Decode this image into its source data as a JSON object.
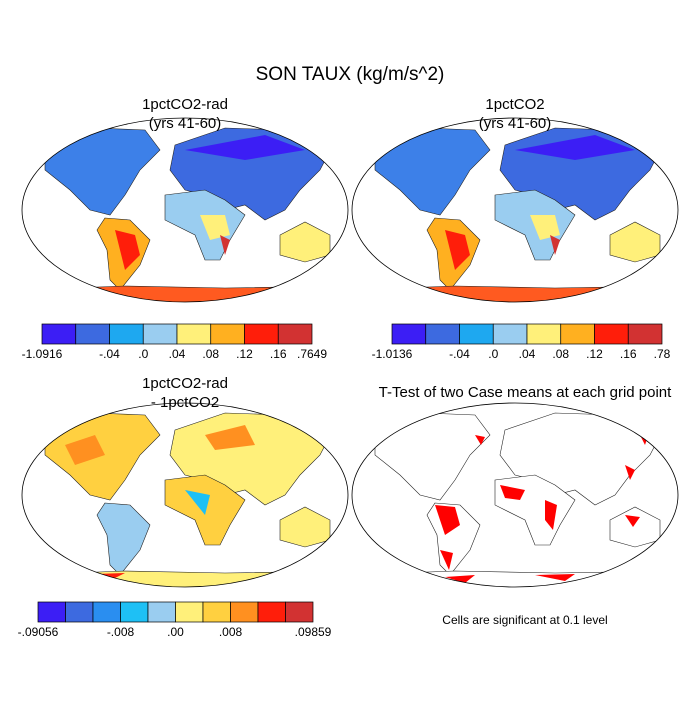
{
  "title": "SON TAUX (kg/m/s^2)",
  "panels": [
    {
      "title": [
        "1pctCO2-rad",
        "(yrs 41-60)"
      ],
      "colorbar": {
        "labels": [
          "-1.0916",
          "-.04",
          ".0",
          ".04",
          ".08",
          ".12",
          ".16",
          ".7649"
        ],
        "colors": [
          "#3c1ef5",
          "#3d6ae0",
          "#1ea8f0",
          "#9acdf0",
          "#fff07a",
          "#ffb020",
          "#ff1e0a",
          "#d23232"
        ]
      }
    },
    {
      "title": [
        "1pctCO2",
        "(yrs 41-60)"
      ],
      "colorbar": {
        "labels": [
          "-1.0136",
          "-.04",
          ".0",
          ".04",
          ".08",
          ".12",
          ".16",
          ".78"
        ],
        "colors": [
          "#3c1ef5",
          "#3d6ae0",
          "#1ea8f0",
          "#9acdf0",
          "#fff07a",
          "#ffb020",
          "#ff1e0a",
          "#d23232"
        ]
      }
    },
    {
      "title": [
        "1pctCO2-rad",
        "- 1pctCO2"
      ],
      "colorbar": {
        "labels": [
          "-.09056",
          "-.008",
          ".00",
          ".008",
          ".09859"
        ],
        "colors": [
          "#3c1ef5",
          "#3d6ae0",
          "#2a8ef0",
          "#1ec0f5",
          "#9acdf0",
          "#fff07a",
          "#ffd040",
          "#ff9020",
          "#ff1e0a",
          "#d23232"
        ]
      }
    },
    {
      "title": [
        "T-Test of two Case means at each grid point"
      ]
    }
  ],
  "note": "Cells are significant at 0.1 level"
}
